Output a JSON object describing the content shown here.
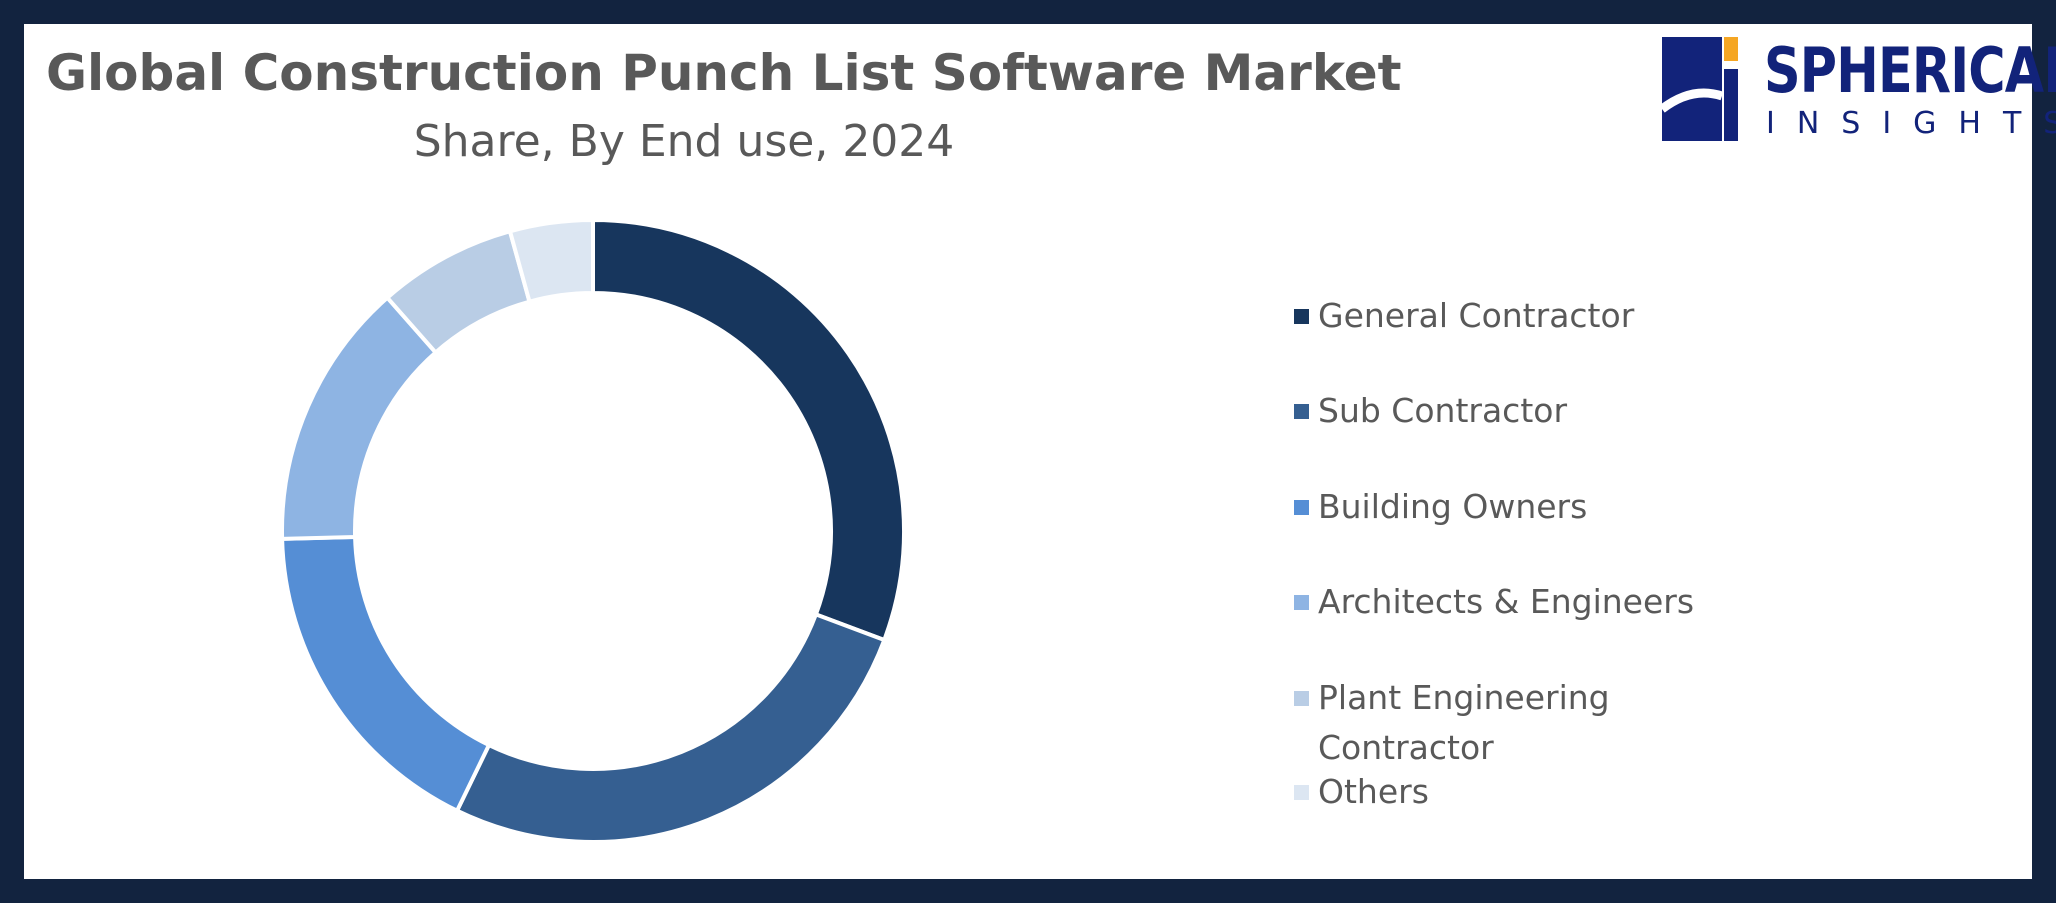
{
  "logo": {
    "line1": "SPHERICAL",
    "line2": "INSIGHTS"
  },
  "chart_data": {
    "type": "donut",
    "title": "Global Construction Punch List Software Market",
    "subtitle": "Share, By End use, 2024",
    "categories": [
      "General Contractor",
      "Sub Contractor",
      "Building Owners",
      "Architects & Engineers",
      "Plant Engineering Contractor",
      "Others"
    ],
    "values": [
      30.7,
      26.5,
      17.4,
      13.9,
      7.2,
      4.3
    ],
    "colors": [
      "#17365d",
      "#355f91",
      "#558ed5",
      "#8eb4e3",
      "#b9cde5",
      "#dce6f2"
    ],
    "legend": "right"
  }
}
